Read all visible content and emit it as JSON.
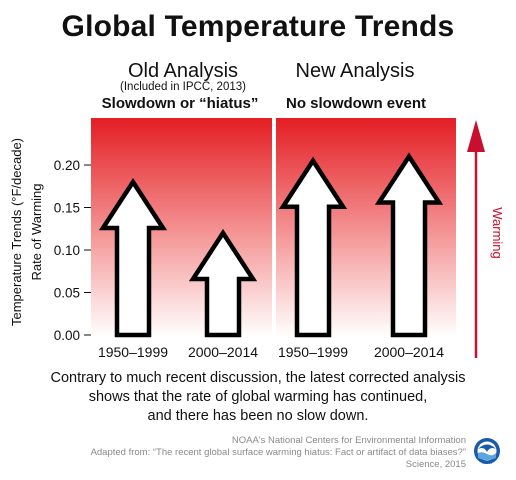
{
  "title": "Global Temperature Trends",
  "panels": [
    {
      "title": "Old Analysis",
      "subtitle": "(Included in IPCC, 2013)",
      "caption": "Slowdown or “hiatus”"
    },
    {
      "title": "New Analysis",
      "subtitle": "",
      "caption": "No slowdown event"
    }
  ],
  "caption_lines": [
    "Contrary to much recent discussion, the latest corrected analysis",
    "shows that the rate of global warming has continued,",
    "and there has been no slow down."
  ],
  "credits": [
    "NOAA's National Centers for Environmental Information",
    "Adapted from: “The recent global surface warming hiatus: Fact or artifact of data biases?”",
    "Science, 2015"
  ],
  "warming_label": "Warming",
  "logo_text": "NOAA",
  "colors": {
    "gradient_top": "#e31e24",
    "gradient_bottom": "#ffffff",
    "arrow": "#c8102e"
  },
  "chart_data": {
    "type": "bar",
    "ylabel": "Temperature Trends (°F/decade)",
    "ylabel2": "Rate of Warming",
    "ylim": [
      0,
      0.25
    ],
    "yticks": [
      0.0,
      0.05,
      0.1,
      0.15,
      0.2
    ],
    "ytick_labels": [
      "0.00",
      "0.05",
      "0.10",
      "0.15",
      "0.20"
    ],
    "grid": false,
    "groups": [
      {
        "panel": "Old Analysis",
        "categories": [
          "1950–1999",
          "2000–2014"
        ],
        "values": [
          0.18,
          0.12
        ]
      },
      {
        "panel": "New Analysis",
        "categories": [
          "1950–1999",
          "2000–2014"
        ],
        "values": [
          0.205,
          0.21
        ]
      }
    ]
  }
}
